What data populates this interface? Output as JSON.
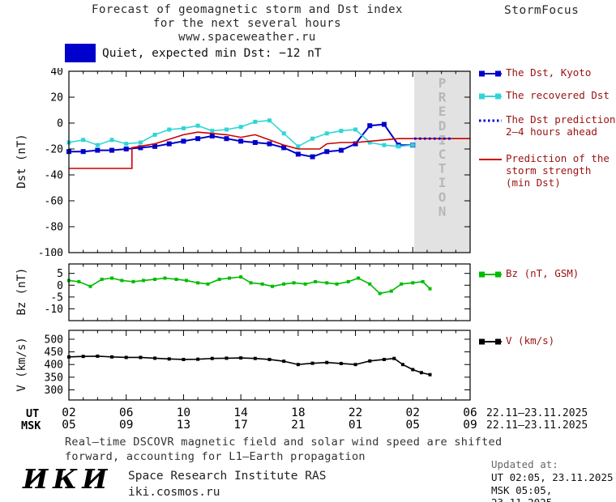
{
  "header": {
    "title_line1": "Forecast of geomagnetic storm and Dst index",
    "title_line2": "for the next several hours",
    "title_line3": "www.spaceweather.ru",
    "brand": "StormFocus"
  },
  "status": {
    "box_color": "#0000cc",
    "label": "Quiet, expected min Dst: −12 nT"
  },
  "axis": {
    "ut_label": "UT",
    "msk_label": "MSK",
    "ut_ticks": [
      "02",
      "06",
      "10",
      "14",
      "18",
      "22",
      "02",
      "06"
    ],
    "msk_ticks": [
      "05",
      "09",
      "13",
      "17",
      "21",
      "01",
      "05",
      "09"
    ],
    "ut_date": "22.11–23.11.2025",
    "msk_date": "22.11–23.11.2025"
  },
  "footer": {
    "note": "Real–time DSCOVR magnetic field and solar wind speed are shifted\nforward, accounting for L1–Earth propagation",
    "logo": "ИКИ",
    "institute": "Space Research Institute RAS",
    "website": "iki.cosmos.ru",
    "updated_label": "Updated at:",
    "updated_ut": "UT  02:05, 23.11.2025",
    "updated_msk": "MSK 05:05, 23.11.2025"
  },
  "chart_data": [
    {
      "type": "line",
      "ylabel": "Dst (nT)",
      "ylim": [
        -100,
        40
      ],
      "yticks": [
        40,
        20,
        0,
        -20,
        -40,
        -60,
        -80,
        -100
      ],
      "xlim": [
        2,
        30
      ],
      "xticks_hours": [
        2,
        6,
        10,
        14,
        18,
        22,
        26,
        30
      ],
      "grid": false,
      "legend_position": "right",
      "prediction": {
        "start": 26.1,
        "label": "PREDICTION",
        "fill": "#e2e2e2",
        "label_color": "#b8b8b8"
      },
      "series": [
        {
          "name": "The Dst, Kyoto",
          "color": "#0000cc",
          "marker": "square",
          "marker_size": 6,
          "line_width": 2,
          "x": [
            2,
            3,
            4,
            5,
            6,
            7,
            8,
            9,
            10,
            11,
            12,
            13,
            14,
            15,
            16,
            17,
            18,
            19,
            20,
            21,
            22,
            23,
            24,
            25,
            26
          ],
          "y": [
            -22,
            -22,
            -21,
            -21,
            -20,
            -19,
            -18,
            -16,
            -14,
            -12,
            -10,
            -12,
            -14,
            -15,
            -16,
            -19,
            -24,
            -26,
            -22,
            -21,
            -16,
            -2,
            -1,
            -17,
            -17
          ]
        },
        {
          "name": "The recovered Dst",
          "color": "#2fd6d6",
          "marker": "square",
          "marker_size": 5,
          "line_width": 1.6,
          "x": [
            2,
            3,
            4,
            5,
            6,
            7,
            8,
            9,
            10,
            11,
            12,
            13,
            14,
            15,
            16,
            17,
            18,
            19,
            20,
            21,
            22,
            23,
            24,
            25,
            26
          ],
          "y": [
            -15,
            -13,
            -17,
            -13,
            -16,
            -15,
            -9,
            -5,
            -4,
            -2,
            -6,
            -5,
            -3,
            1,
            2,
            -8,
            -18,
            -12,
            -8,
            -6,
            -5,
            -15,
            -17,
            -18,
            -17
          ]
        },
        {
          "name": "The Dst prediction\n2–4 hours ahead",
          "color": "#0000cc",
          "style": "dotted",
          "line_width": 2.8,
          "x": [
            26.1,
            28.7
          ],
          "y": [
            -12,
            -12
          ]
        },
        {
          "name": "Prediction of the\nstorm strength\n(min Dst)",
          "color": "#cc0000",
          "line_width": 1.6,
          "x": [
            2,
            6.4,
            6.4,
            8,
            10,
            11,
            12,
            13,
            14,
            15,
            16,
            17,
            18,
            19.5,
            20,
            21,
            22,
            23,
            24,
            25,
            30
          ],
          "y": [
            -35,
            -35,
            -19,
            -16,
            -9,
            -7,
            -8,
            -9,
            -11,
            -9,
            -13,
            -17,
            -20,
            -20,
            -16,
            -15,
            -15,
            -14,
            -13,
            -12,
            -12
          ]
        }
      ]
    },
    {
      "type": "line",
      "ylabel": "Bz (nT)",
      "ylim": [
        -15,
        9
      ],
      "yticks": [
        5,
        0,
        -5,
        -10
      ],
      "xlim": [
        2,
        30
      ],
      "xticks_hours": [
        2,
        6,
        10,
        14,
        18,
        22,
        26,
        30
      ],
      "grid": false,
      "series": [
        {
          "name": "Bz (nT, GSM)",
          "color": "#00bb00",
          "marker": "square",
          "marker_size": 4,
          "line_width": 1.6,
          "x": [
            2,
            2.7,
            3.5,
            4.3,
            5,
            5.7,
            6.5,
            7.2,
            8,
            8.7,
            9.5,
            10.2,
            11,
            11.7,
            12.5,
            13.2,
            14,
            14.7,
            15.5,
            16.2,
            17,
            17.7,
            18.5,
            19.2,
            20,
            20.7,
            21.5,
            22.2,
            23,
            23.7,
            24.5,
            25.2,
            26,
            26.7,
            27.2
          ],
          "y": [
            2,
            1.5,
            -0.5,
            2.5,
            3,
            2,
            1.5,
            2,
            2.5,
            3,
            2.5,
            2,
            1,
            0.5,
            2.5,
            3,
            3.5,
            1,
            0.5,
            -0.5,
            0.5,
            1,
            0.5,
            1.5,
            1,
            0.5,
            1.5,
            3,
            0.5,
            -3.5,
            -2.5,
            0.5,
            1,
            1.5,
            -1.5
          ]
        }
      ]
    },
    {
      "type": "line",
      "ylabel": "V (km/s)",
      "ylim": [
        260,
        535
      ],
      "yticks": [
        500,
        450,
        400,
        350,
        300
      ],
      "xlim": [
        2,
        30
      ],
      "xticks_hours": [
        2,
        6,
        10,
        14,
        18,
        22,
        26,
        30
      ],
      "grid": false,
      "series": [
        {
          "name": "V (km/s)",
          "color": "#000000",
          "marker": "square",
          "marker_size": 4,
          "line_width": 1.6,
          "x": [
            2,
            3,
            4,
            5,
            6,
            7,
            8,
            9,
            10,
            11,
            12,
            13,
            14,
            15,
            16,
            17,
            18,
            19,
            20,
            21,
            22,
            23,
            24,
            24.7,
            25.3,
            26,
            26.6,
            27.2
          ],
          "y": [
            430,
            432,
            433,
            430,
            428,
            428,
            425,
            422,
            420,
            421,
            424,
            425,
            426,
            424,
            420,
            413,
            400,
            405,
            408,
            404,
            400,
            414,
            420,
            424,
            400,
            380,
            368,
            360
          ]
        }
      ]
    }
  ]
}
